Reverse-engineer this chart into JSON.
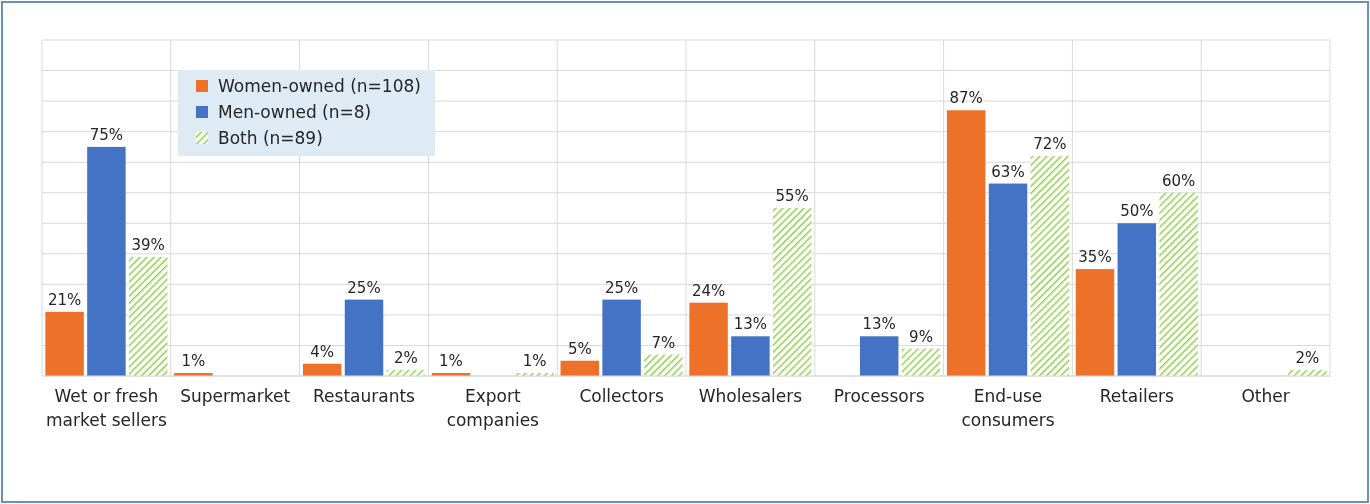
{
  "chart_data": {
    "type": "bar",
    "categories": [
      "Wet or fresh market sellers",
      "Supermarket",
      "Restaurants",
      "Export companies",
      "Collectors",
      "Wholesalers",
      "Processors",
      "End-use consumers",
      "Retailers",
      "Other"
    ],
    "series": [
      {
        "name": "Women-owned (n=108)",
        "color": "#ed7128",
        "values": [
          21,
          1,
          4,
          1,
          5,
          24,
          null,
          87,
          35,
          null
        ],
        "value_labels": [
          "21%",
          "1%",
          "4%",
          "1%",
          "5%",
          "24%",
          null,
          "87%",
          "35%",
          null
        ]
      },
      {
        "name": "Men-owned (n=8)",
        "color": "#4472c4",
        "values": [
          75,
          null,
          25,
          null,
          25,
          13,
          13,
          63,
          50,
          null
        ],
        "value_labels": [
          "75%",
          null,
          "25%",
          null,
          "25%",
          "13%",
          "13%",
          "63%",
          "50%",
          null
        ]
      },
      {
        "name": "Both (n=89)",
        "color": "#92d050",
        "values": [
          39,
          null,
          2,
          1,
          7,
          55,
          9,
          72,
          60,
          2
        ],
        "value_labels": [
          "39%",
          null,
          "2%",
          "1%",
          "7%",
          "55%",
          "9%",
          "72%",
          "60%",
          "2%"
        ]
      }
    ],
    "ylim": [
      0,
      110
    ],
    "yticks": [
      {
        "value": 0,
        "label": null
      },
      {
        "value": 10,
        "label": null
      },
      {
        "value": 20,
        "label": null
      },
      {
        "value": 30,
        "label": null
      },
      {
        "value": 40,
        "label": null
      },
      {
        "value": 50,
        "label": null
      },
      {
        "value": 60,
        "label": null
      },
      {
        "value": 70,
        "label": null
      },
      {
        "value": 80,
        "label": null
      },
      {
        "value": 90,
        "label": null
      },
      {
        "value": 100,
        "label": null
      },
      {
        "value": 110,
        "label": null
      }
    ],
    "tick_labels": "x",
    "grid": true,
    "legend": "top left"
  }
}
